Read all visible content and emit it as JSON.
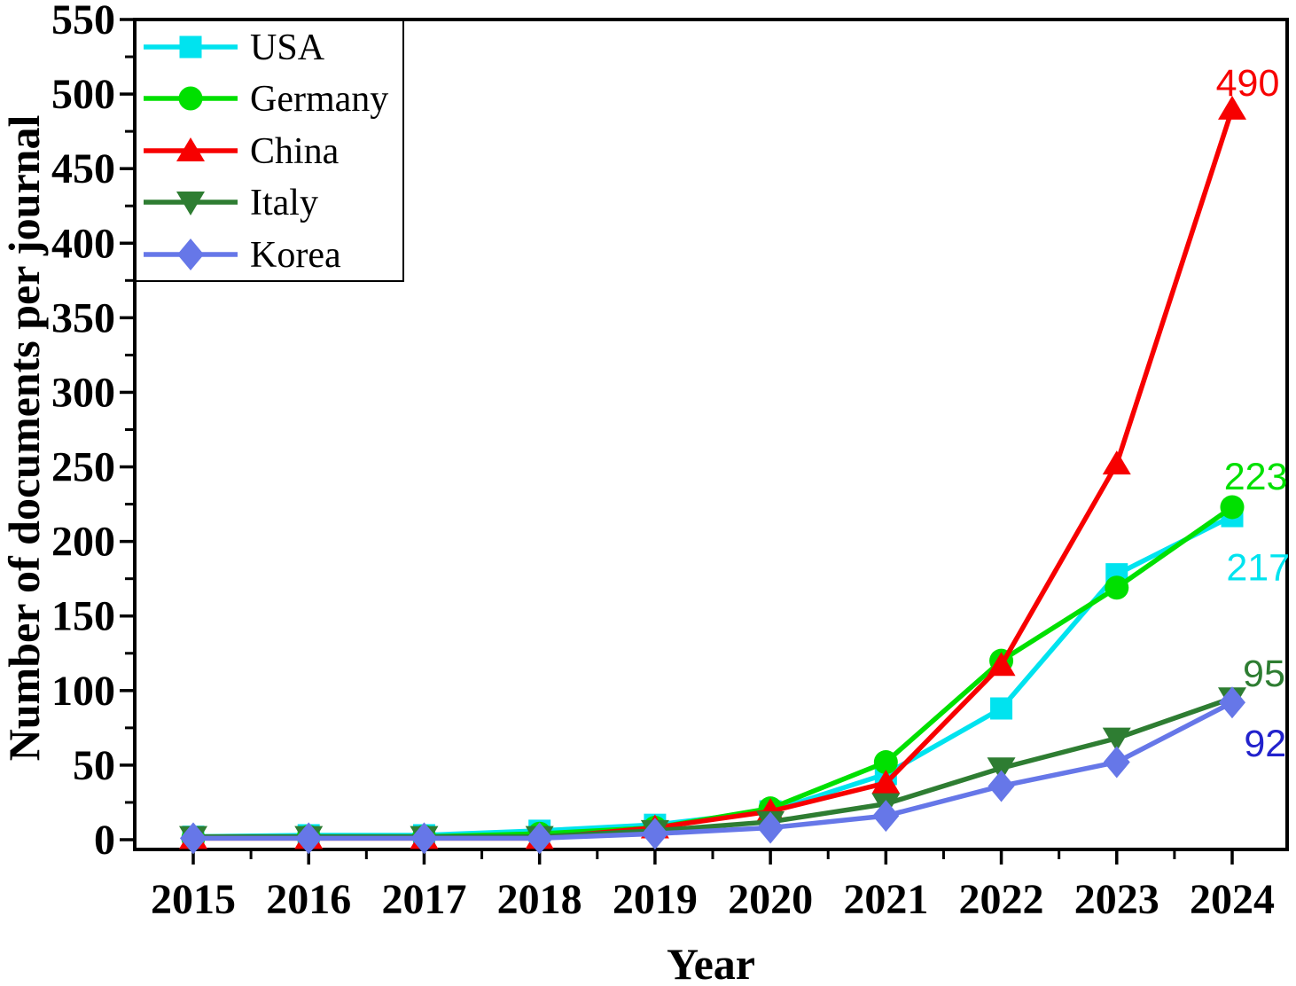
{
  "chart_data": {
    "type": "line",
    "title": "",
    "xlabel": "Year",
    "ylabel": "Number of documents per journal",
    "categories": [
      2015,
      2016,
      2017,
      2018,
      2019,
      2020,
      2021,
      2022,
      2023,
      2024
    ],
    "series": [
      {
        "name": "USA",
        "color": "#00E3EF",
        "marker": "square",
        "values": [
          2,
          3,
          3,
          6,
          10,
          19,
          44,
          88,
          178,
          217
        ]
      },
      {
        "name": "Germany",
        "color": "#00E000",
        "marker": "circle",
        "values": [
          1,
          2,
          2,
          4,
          8,
          21,
          52,
          120,
          169,
          223
        ]
      },
      {
        "name": "China",
        "color": "#F70000",
        "marker": "triangle-up",
        "values": [
          1,
          1,
          1,
          1,
          8,
          19,
          38,
          117,
          252,
          490
        ]
      },
      {
        "name": "Italy",
        "color": "#2E7D32",
        "marker": "triangle-down",
        "values": [
          2,
          2,
          2,
          2,
          6,
          12,
          24,
          48,
          68,
          95
        ]
      },
      {
        "name": "Korea",
        "color": "#6677E8",
        "marker": "diamond",
        "values": [
          1,
          1,
          1,
          1,
          4,
          8,
          16,
          36,
          52,
          92
        ]
      }
    ],
    "end_labels": [
      {
        "text": "490",
        "color": "#F70000",
        "year": 2024.41,
        "value": 499
      },
      {
        "text": "223",
        "color": "#00E000",
        "year": 2024.48,
        "value": 235
      },
      {
        "text": "217",
        "color": "#00E3EF",
        "year": 2024.5,
        "value": 174
      },
      {
        "text": "95",
        "color": "#2E7D32",
        "year": 2024.46,
        "value": 103
      },
      {
        "text": "92",
        "color": "#2222CC",
        "year": 2024.47,
        "value": 56
      }
    ],
    "yticks_major": [
      0,
      50,
      100,
      150,
      200,
      250,
      300,
      350,
      400,
      450,
      500,
      550
    ],
    "ytick_minor_step": 25,
    "xtick_minor_step": 0.5,
    "ylim": [
      -7,
      550
    ],
    "xlim": [
      2014.49,
      2024.52
    ],
    "grid": false,
    "legend_position": "top-left",
    "axis_color": "#000000",
    "background_color": "#FFFFFF"
  }
}
